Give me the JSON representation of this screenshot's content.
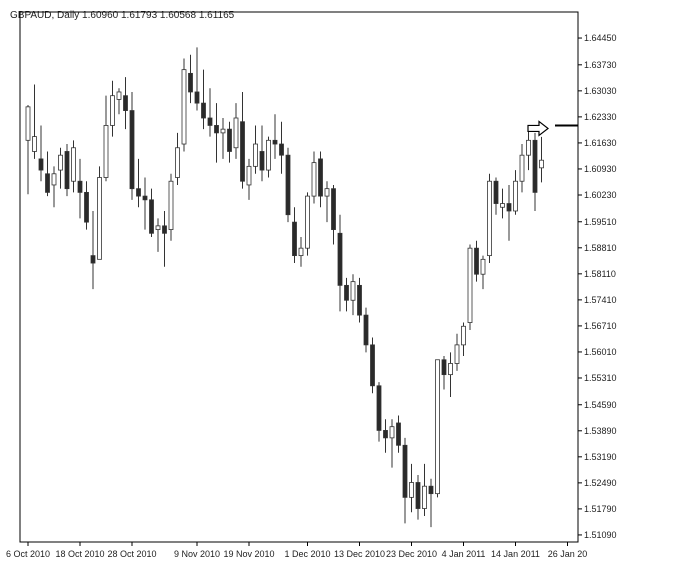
{
  "header": {
    "symbol": "GBPAUD",
    "timeframe": "Daily",
    "open": "1.60960",
    "high": "1.61793",
    "low": "1.60568",
    "close": "1.61165"
  },
  "chart_data": {
    "type": "candlestick",
    "title": "GBPAUD, Daily 1.60960 1.61793 1.60568 1.61165",
    "ylim": [
      1.509,
      1.6515
    ],
    "yticks": [
      "1.64450",
      "1.63730",
      "1.63030",
      "1.62330",
      "1.61630",
      "1.60930",
      "1.60230",
      "1.59510",
      "1.58810",
      "1.58110",
      "1.57410",
      "1.56710",
      "1.56010",
      "1.55310",
      "1.54590",
      "1.53890",
      "1.53190",
      "1.52490",
      "1.51790",
      "1.51090"
    ],
    "xticks": [
      {
        "label": "6 Oct 2010",
        "index": 0
      },
      {
        "label": "18 Oct 2010",
        "index": 8
      },
      {
        "label": "28 Oct 2010",
        "index": 16
      },
      {
        "label": "9 Nov 2010",
        "index": 26
      },
      {
        "label": "19 Nov 2010",
        "index": 34
      },
      {
        "label": "1 Dec 2010",
        "index": 43
      },
      {
        "label": "13 Dec 2010",
        "index": 51
      },
      {
        "label": "23 Dec 2010",
        "index": 59
      },
      {
        "label": "4 Jan 2011",
        "index": 67
      },
      {
        "label": "14 Jan 2011",
        "index": 75
      },
      {
        "label": "26 Jan 20",
        "index": 83
      }
    ],
    "candles": [
      [
        1.617,
        1.6265,
        1.6025,
        1.626
      ],
      [
        1.614,
        1.632,
        1.612,
        1.618
      ],
      [
        1.612,
        1.621,
        1.606,
        1.609
      ],
      [
        1.608,
        1.614,
        1.602,
        1.603
      ],
      [
        1.605,
        1.61,
        1.599,
        1.608
      ],
      [
        1.609,
        1.615,
        1.604,
        1.613
      ],
      [
        1.614,
        1.616,
        1.602,
        1.604
      ],
      [
        1.606,
        1.617,
        1.603,
        1.615
      ],
      [
        1.606,
        1.612,
        1.596,
        1.603
      ],
      [
        1.603,
        1.606,
        1.593,
        1.595
      ],
      [
        1.586,
        1.598,
        1.577,
        1.584
      ],
      [
        1.585,
        1.61,
        1.585,
        1.607
      ],
      [
        1.607,
        1.629,
        1.606,
        1.621
      ],
      [
        1.621,
        1.633,
        1.618,
        1.629
      ],
      [
        1.628,
        1.631,
        1.624,
        1.63
      ],
      [
        1.629,
        1.634,
        1.62,
        1.625
      ],
      [
        1.625,
        1.63,
        1.601,
        1.604
      ],
      [
        1.604,
        1.612,
        1.599,
        1.602
      ],
      [
        1.602,
        1.607,
        1.593,
        1.601
      ],
      [
        1.601,
        1.604,
        1.591,
        1.592
      ],
      [
        1.593,
        1.596,
        1.587,
        1.594
      ],
      [
        1.594,
        1.598,
        1.583,
        1.592
      ],
      [
        1.593,
        1.608,
        1.59,
        1.606
      ],
      [
        1.607,
        1.619,
        1.605,
        1.615
      ],
      [
        1.616,
        1.639,
        1.614,
        1.636
      ],
      [
        1.635,
        1.64,
        1.627,
        1.63
      ],
      [
        1.63,
        1.642,
        1.625,
        1.627
      ],
      [
        1.627,
        1.636,
        1.62,
        1.623
      ],
      [
        1.623,
        1.631,
        1.618,
        1.621
      ],
      [
        1.621,
        1.627,
        1.611,
        1.619
      ],
      [
        1.619,
        1.623,
        1.612,
        1.62
      ],
      [
        1.62,
        1.622,
        1.611,
        1.614
      ],
      [
        1.615,
        1.627,
        1.612,
        1.623
      ],
      [
        1.622,
        1.63,
        1.604,
        1.606
      ],
      [
        1.605,
        1.612,
        1.601,
        1.61
      ],
      [
        1.61,
        1.621,
        1.608,
        1.616
      ],
      [
        1.614,
        1.621,
        1.606,
        1.609
      ],
      [
        1.609,
        1.618,
        1.607,
        1.617
      ],
      [
        1.617,
        1.624,
        1.612,
        1.616
      ],
      [
        1.616,
        1.622,
        1.608,
        1.613
      ],
      [
        1.613,
        1.615,
        1.595,
        1.597
      ],
      [
        1.595,
        1.599,
        1.584,
        1.586
      ],
      [
        1.586,
        1.591,
        1.583,
        1.588
      ],
      [
        1.588,
        1.603,
        1.586,
        1.602
      ],
      [
        1.602,
        1.614,
        1.6,
        1.611
      ],
      [
        1.612,
        1.614,
        1.599,
        1.602
      ],
      [
        1.602,
        1.606,
        1.595,
        1.604
      ],
      [
        1.604,
        1.605,
        1.589,
        1.593
      ],
      [
        1.592,
        1.597,
        1.571,
        1.578
      ],
      [
        1.578,
        1.58,
        1.571,
        1.574
      ],
      [
        1.574,
        1.581,
        1.57,
        1.579
      ],
      [
        1.578,
        1.58,
        1.568,
        1.57
      ],
      [
        1.57,
        1.572,
        1.56,
        1.562
      ],
      [
        1.562,
        1.564,
        1.549,
        1.551
      ],
      [
        1.551,
        1.552,
        1.536,
        1.539
      ],
      [
        1.539,
        1.542,
        1.533,
        1.537
      ],
      [
        1.537,
        1.542,
        1.529,
        1.54
      ],
      [
        1.541,
        1.543,
        1.533,
        1.535
      ],
      [
        1.535,
        1.537,
        1.514,
        1.521
      ],
      [
        1.521,
        1.53,
        1.517,
        1.525
      ],
      [
        1.525,
        1.527,
        1.515,
        1.518
      ],
      [
        1.518,
        1.53,
        1.516,
        1.524
      ],
      [
        1.524,
        1.526,
        1.513,
        1.522
      ],
      [
        1.522,
        1.558,
        1.521,
        1.558
      ],
      [
        1.558,
        1.559,
        1.55,
        1.554
      ],
      [
        1.554,
        1.56,
        1.548,
        1.557
      ],
      [
        1.557,
        1.565,
        1.555,
        1.562
      ],
      [
        1.562,
        1.568,
        1.559,
        1.567
      ],
      [
        1.568,
        1.589,
        1.566,
        1.588
      ],
      [
        1.588,
        1.59,
        1.579,
        1.581
      ],
      [
        1.581,
        1.586,
        1.577,
        1.585
      ],
      [
        1.586,
        1.608,
        1.584,
        1.606
      ],
      [
        1.606,
        1.607,
        1.597,
        1.6
      ],
      [
        1.599,
        1.604,
        1.596,
        1.6
      ],
      [
        1.6,
        1.605,
        1.59,
        1.598
      ],
      [
        1.598,
        1.609,
        1.597,
        1.606
      ],
      [
        1.606,
        1.616,
        1.603,
        1.613
      ],
      [
        1.613,
        1.62,
        1.609,
        1.617
      ],
      [
        1.617,
        1.619,
        1.598,
        1.603
      ],
      [
        1.6096,
        1.61793,
        1.60568,
        1.61165
      ]
    ],
    "current_price": 1.621,
    "annotation": "arrow pointing to current price level",
    "grid": false,
    "colors": {
      "background": "#ffffff",
      "bull_body": "#ffffff",
      "bear_body": "#2a2a2a",
      "wick": "#333333",
      "axis": "#000000"
    }
  }
}
